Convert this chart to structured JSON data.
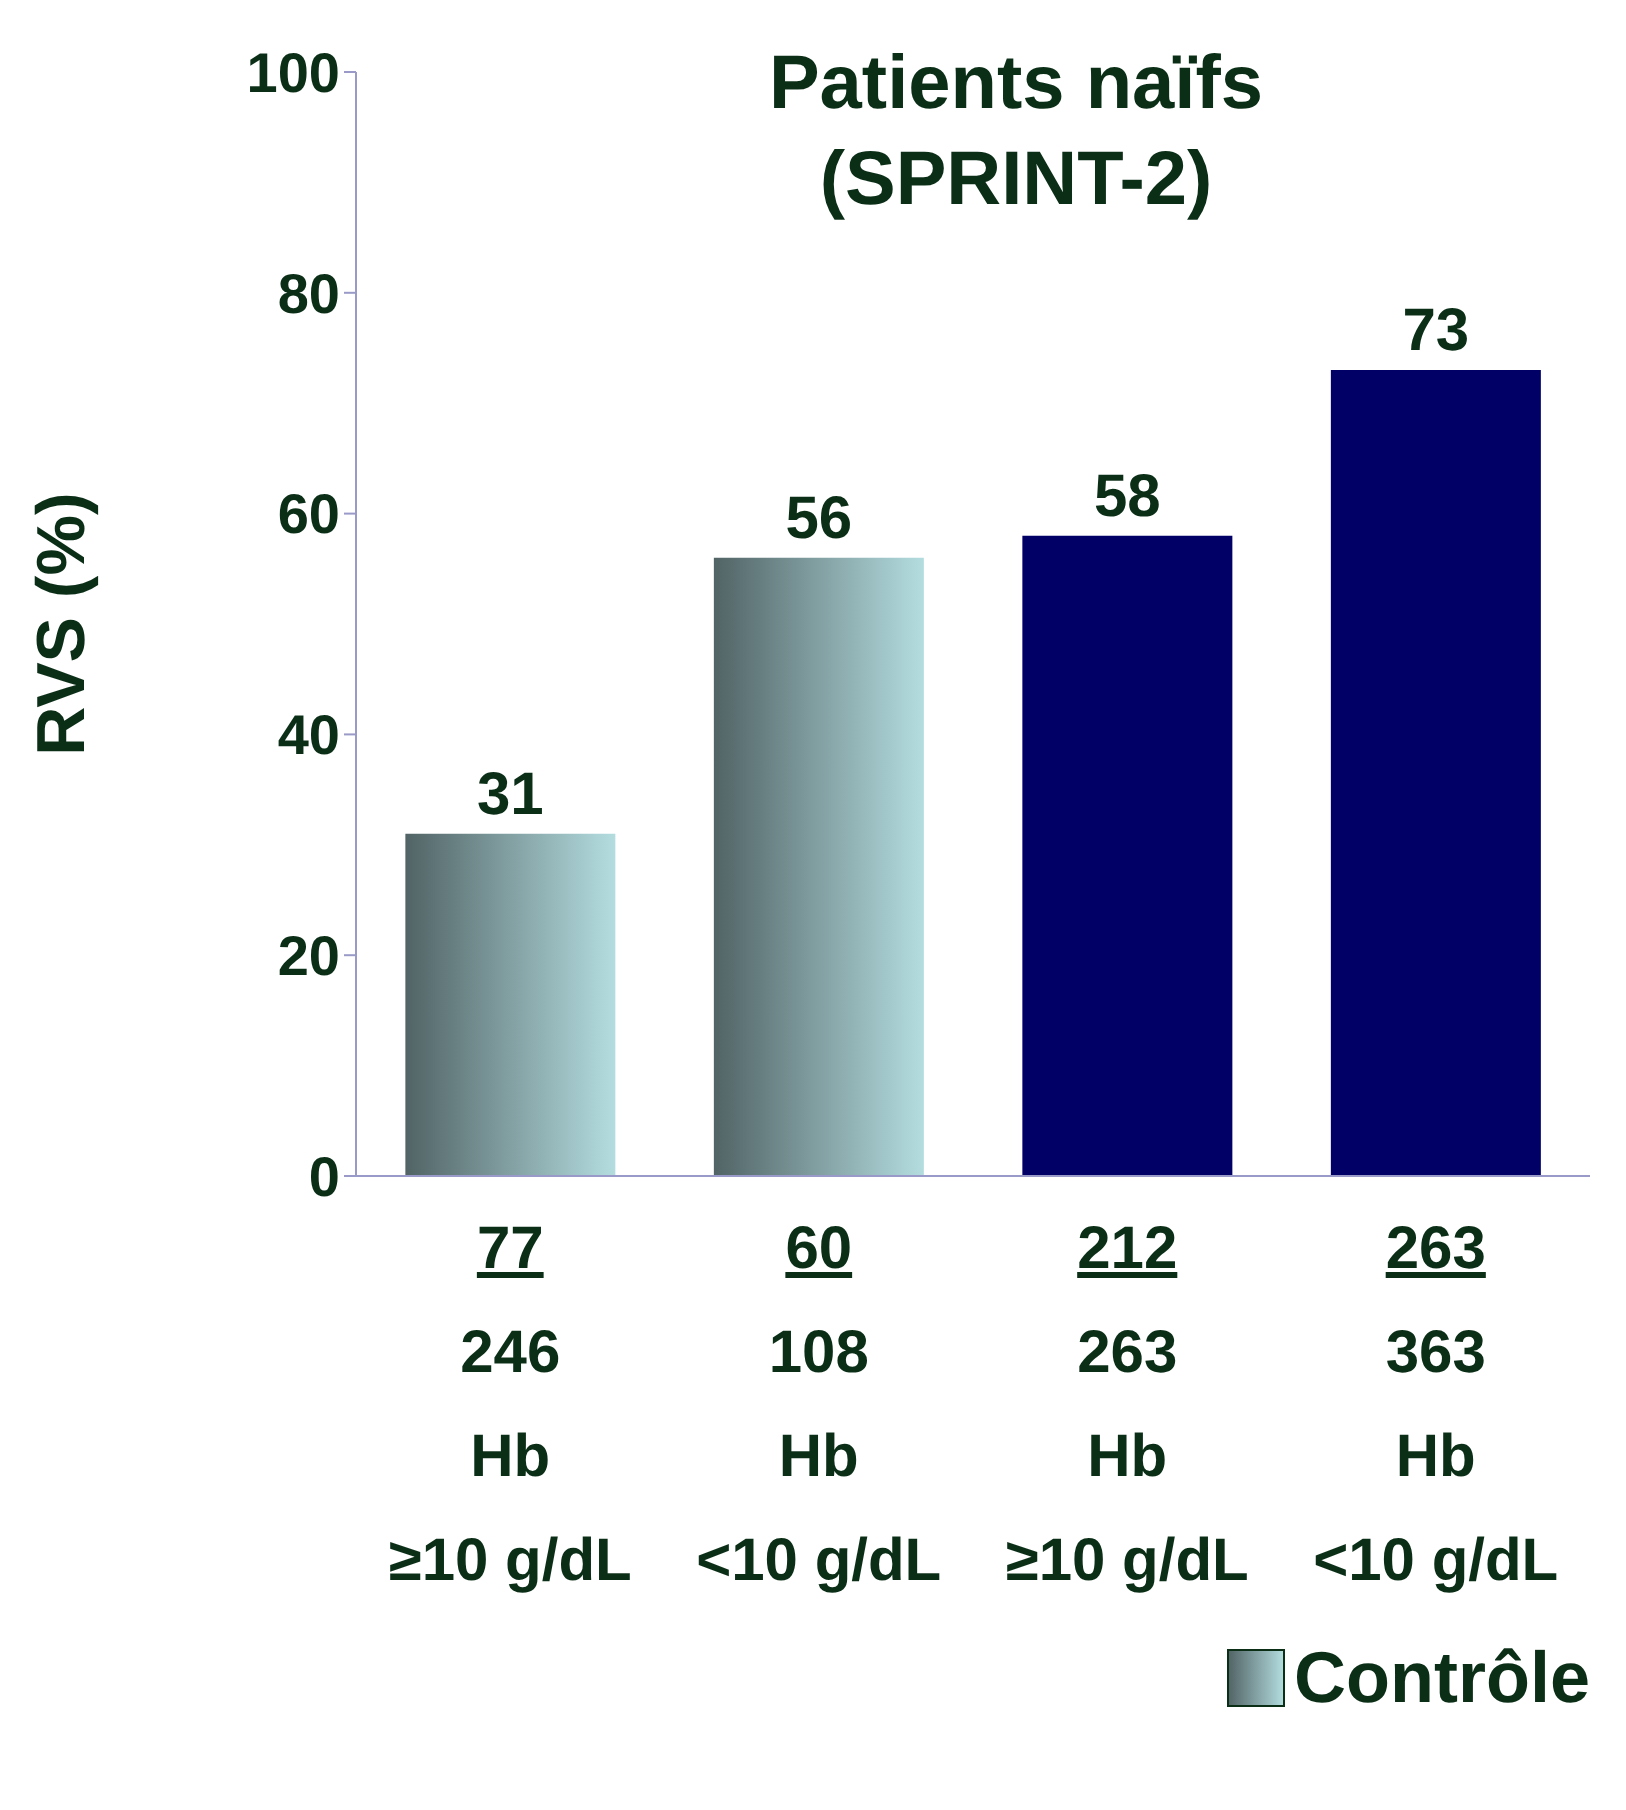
{
  "chart_data": {
    "type": "bar",
    "title": "Patients naïfs (SPRINT-2)",
    "ylabel": "RVS (%)",
    "categories": [
      "77\n246\nHb\n≥10 g/dL",
      "60\n108\nHb\n<10 g/dL",
      "212\n263\nHb\n≥10 g/dL",
      "263\n363\nHb\n<10 g/dL"
    ],
    "series": [
      {
        "name": "Contrôle",
        "color": "#b4dde0",
        "values": [
          31,
          56,
          null,
          null
        ]
      },
      {
        "color": "#000066",
        "values": [
          null,
          null,
          58,
          73
        ]
      }
    ],
    "ylim": [
      0,
      100
    ],
    "yticks": [
      0,
      20,
      40,
      60,
      80,
      100
    ],
    "data_labels": true,
    "legend": "bottom right"
  }
}
